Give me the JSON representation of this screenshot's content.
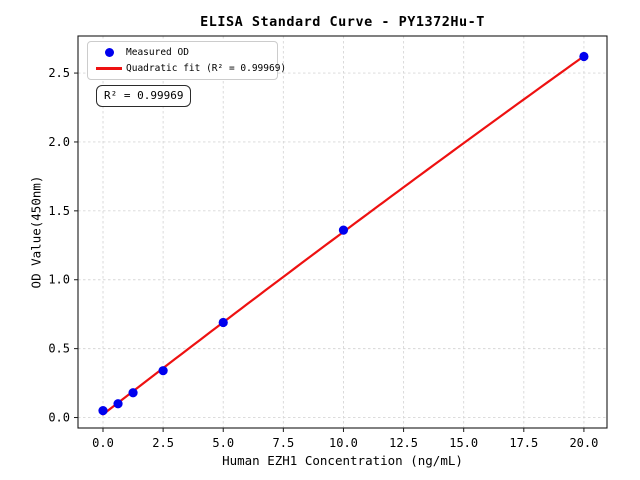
{
  "chart": {
    "title": "ELISA Standard Curve - PY1372Hu-T",
    "xlabel": "Human EZH1 Concentration (ng/mL)",
    "ylabel": "OD Value(450nm)",
    "annotation": "R² = 0.99969",
    "legend": [
      {
        "label": "Measured OD",
        "marker": "blue-dot-icon"
      },
      {
        "label": "Quadratic fit (R² = 0.99969)",
        "marker": "red-line-icon"
      }
    ],
    "colors": {
      "points": "#0000ee",
      "fit_line": "#ee1111",
      "grid": "#d7d7d7",
      "spine": "#1a1a1a",
      "text": "#000000",
      "legend_border": "#cccccc"
    }
  },
  "chart_data": {
    "type": "scatter",
    "title": "ELISA Standard Curve - PY1372Hu-T",
    "xlabel": "Human EZH1 Concentration (ng/mL)",
    "ylabel": "OD Value(450nm)",
    "series": [
      {
        "name": "Measured OD",
        "type": "scatter",
        "x": [
          0,
          0.625,
          1.25,
          2.5,
          5,
          10,
          20
        ],
        "y": [
          0.05,
          0.1,
          0.18,
          0.34,
          0.69,
          1.36,
          2.62
        ]
      },
      {
        "name": "Quadratic fit (R² = 0.99969)",
        "type": "line",
        "fit": "quadratic",
        "fit_domain": [
          0,
          20
        ],
        "r_squared": 0.99969
      }
    ],
    "xlim": [
      -1.04,
      20.96
    ],
    "ylim": [
      -0.076,
      2.769
    ],
    "x_ticks": {
      "values": [
        0,
        2.5,
        5,
        7.5,
        10,
        12.5,
        15,
        17.5,
        20
      ],
      "labels": [
        "0.0",
        "2.5",
        "5.0",
        "7.5",
        "10.0",
        "12.5",
        "15.0",
        "17.5",
        "20.0"
      ]
    },
    "y_ticks": {
      "values": [
        0,
        0.5,
        1,
        1.5,
        2,
        2.5
      ],
      "labels": [
        "0.0",
        "0.5",
        "1.0",
        "1.5",
        "2.0",
        "2.5"
      ]
    },
    "grid": true,
    "grid_style": "dashed",
    "legend_position": "upper left"
  }
}
